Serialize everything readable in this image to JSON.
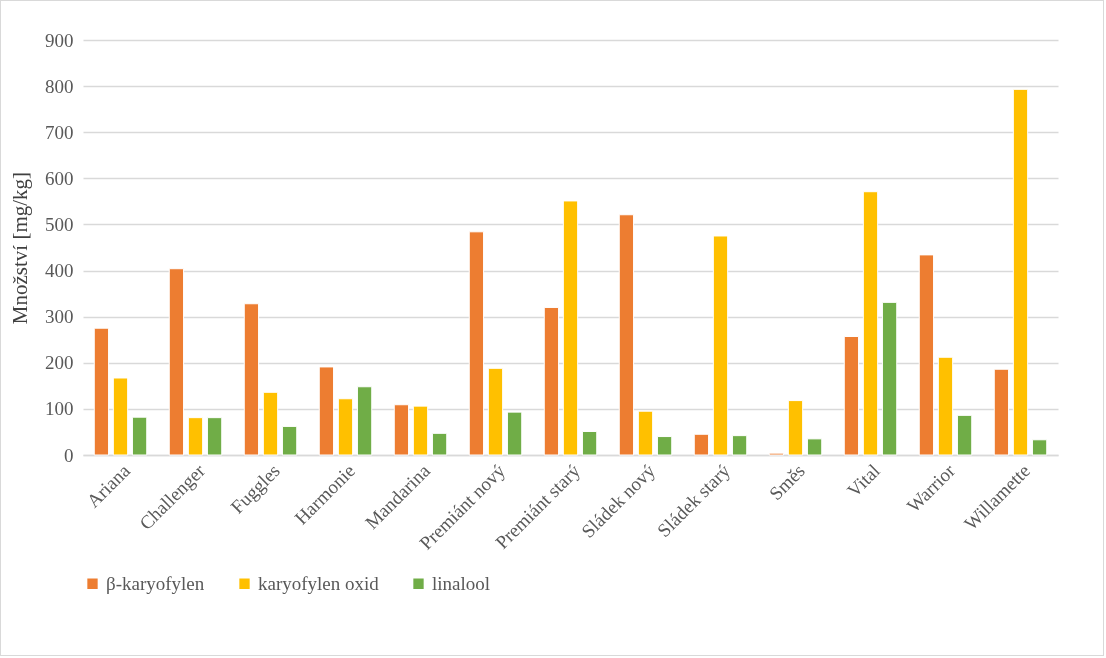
{
  "chart_data": {
    "type": "bar",
    "ylabel": "Množství [mg/kg]",
    "categories": [
      "Ariana",
      "Challenger",
      "Fuggles",
      "Harmonie",
      "Mandarina",
      "Premiánt nový",
      "Premiánt starý",
      "Sládek nový",
      "Sládek starý",
      "Směs",
      "Vital",
      "Warrior",
      "Willamette"
    ],
    "series": [
      {
        "name": "β-karyofylen",
        "color": "#ed7d31",
        "values": [
          275,
          404,
          328,
          191,
          109,
          484,
          320,
          521,
          45,
          4,
          257,
          434,
          186
        ]
      },
      {
        "name": "karyofylen oxid",
        "color": "#ffc000",
        "values": [
          167,
          81,
          136,
          122,
          106,
          188,
          551,
          95,
          475,
          118,
          571,
          212,
          793
        ]
      },
      {
        "name": "linalool",
        "color": "#70ad47",
        "values": [
          82,
          81,
          62,
          148,
          47,
          93,
          51,
          40,
          42,
          35,
          331,
          86,
          33
        ]
      }
    ],
    "ylim": [
      0,
      900
    ],
    "yticks": [
      0,
      100,
      200,
      300,
      400,
      500,
      600,
      700,
      800,
      900
    ],
    "grid": "y",
    "legend": "bottom"
  }
}
